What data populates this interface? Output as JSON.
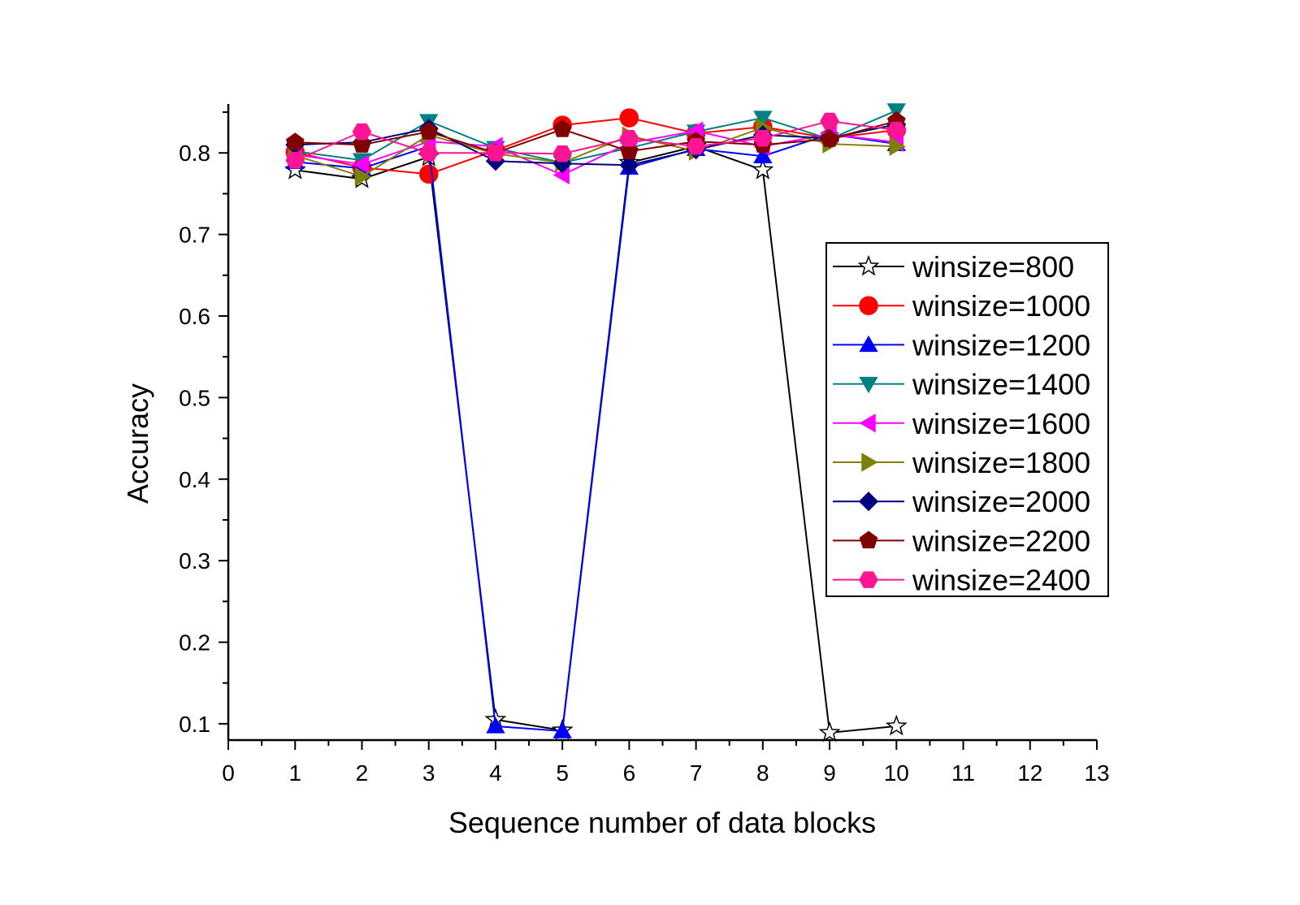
{
  "chart_data": {
    "type": "line",
    "title": "",
    "xlabel": "Sequence number of data blocks",
    "ylabel": "Accuracy",
    "xlim": [
      0,
      13
    ],
    "ylim": [
      0.08,
      0.86
    ],
    "x_ticks": [
      0,
      1,
      2,
      3,
      4,
      5,
      6,
      7,
      8,
      9,
      10,
      11,
      12,
      13
    ],
    "x_tick_labels": [
      "0",
      "1",
      "2",
      "3",
      "4",
      "5",
      "6",
      "7",
      "8",
      "9",
      "10",
      "11",
      "12",
      "13"
    ],
    "y_ticks": [
      0.1,
      0.2,
      0.3,
      0.4,
      0.5,
      0.6,
      0.7,
      0.8
    ],
    "y_tick_labels": [
      "0.1",
      "0.2",
      "0.3",
      "0.4",
      "0.5",
      "0.6",
      "0.7",
      "0.8"
    ],
    "grid": false,
    "legend_position": "right",
    "x": [
      1,
      2,
      3,
      4,
      5,
      6,
      7,
      8,
      9,
      10
    ],
    "series": [
      {
        "name": "winsize=800",
        "color": "#000000",
        "marker": "star",
        "fill": "#ffffff",
        "values": [
          0.779,
          0.768,
          0.795,
          0.105,
          0.092,
          0.788,
          0.808,
          0.779,
          0.089,
          0.097
        ]
      },
      {
        "name": "winsize=1000",
        "color": "#ff0000",
        "marker": "circle",
        "fill": "#ff0000",
        "values": [
          0.801,
          0.782,
          0.774,
          0.803,
          0.834,
          0.843,
          0.824,
          0.832,
          0.818,
          0.828
        ]
      },
      {
        "name": "winsize=1200",
        "color": "#0000ff",
        "marker": "triangle-up",
        "fill": "#0000ff",
        "values": [
          0.789,
          0.781,
          0.808,
          0.097,
          0.091,
          0.782,
          0.805,
          0.796,
          0.823,
          0.811
        ]
      },
      {
        "name": "winsize=1400",
        "color": "#008080",
        "marker": "triangle-down",
        "fill": "#008080",
        "values": [
          0.802,
          0.791,
          0.839,
          0.806,
          0.788,
          0.806,
          0.826,
          0.843,
          0.817,
          0.852
        ]
      },
      {
        "name": "winsize=1600",
        "color": "#ff00ff",
        "marker": "triangle-left",
        "fill": "#ff00ff",
        "values": [
          0.798,
          0.786,
          0.814,
          0.808,
          0.773,
          0.812,
          0.827,
          0.808,
          0.823,
          0.813
        ]
      },
      {
        "name": "winsize=1800",
        "color": "#808000",
        "marker": "triangle-right",
        "fill": "#808000",
        "values": [
          0.797,
          0.771,
          0.822,
          0.799,
          0.788,
          0.821,
          0.802,
          0.831,
          0.811,
          0.808
        ]
      },
      {
        "name": "winsize=2000",
        "color": "#000080",
        "marker": "diamond",
        "fill": "#000080",
        "values": [
          0.81,
          0.813,
          0.83,
          0.79,
          0.787,
          0.785,
          0.804,
          0.822,
          0.818,
          0.835
        ]
      },
      {
        "name": "winsize=2200",
        "color": "#800000",
        "marker": "pentagon",
        "fill": "#800000",
        "values": [
          0.813,
          0.81,
          0.826,
          0.8,
          0.829,
          0.802,
          0.814,
          0.81,
          0.817,
          0.839
        ]
      },
      {
        "name": "winsize=2400",
        "color": "#ff1493",
        "marker": "hexagon",
        "fill": "#ff1493",
        "values": [
          0.791,
          0.826,
          0.8,
          0.8,
          0.799,
          0.818,
          0.808,
          0.818,
          0.839,
          0.828
        ]
      }
    ]
  }
}
